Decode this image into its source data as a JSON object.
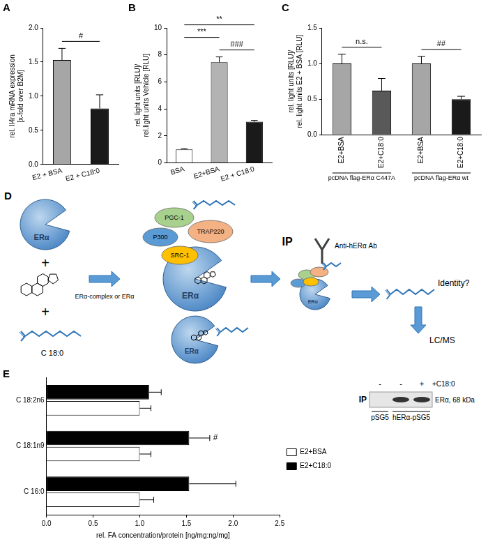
{
  "chart_data": [
    {
      "panel": "A",
      "type": "bar",
      "y_label": [
        "rel. Il4ra mRNA expression",
        "[x-fold over B2M]"
      ],
      "categories": [
        "E2 + BSA",
        "E2 + C18:0"
      ],
      "values": [
        1.53,
        0.82
      ],
      "errors": [
        0.17,
        0.2
      ],
      "colors": [
        "#a6a6a6",
        "#1a1a1a"
      ],
      "ylim": [
        0,
        2
      ],
      "yticks": [
        {
          "value": 0,
          "label": "0.0"
        },
        {
          "value": 0.5,
          "label": "0.5"
        },
        {
          "value": 1,
          "label": "1.0"
        },
        {
          "value": 1.5,
          "label": "1.5"
        },
        {
          "value": 2,
          "label": "2.0"
        }
      ],
      "grid": false,
      "annotations": [
        {
          "text": "#",
          "between": [
            0,
            1
          ]
        }
      ]
    },
    {
      "panel": "B",
      "type": "bar",
      "y_label": [
        "rel. light units [RLU]/",
        "rel.light units Vehicle [RLU]"
      ],
      "categories": [
        "BSA",
        "E2+BSA",
        "E2 + C18:0"
      ],
      "values": [
        1.0,
        7.45,
        3.05
      ],
      "errors": [
        0.05,
        0.4,
        0.1
      ],
      "colors": [
        "#ffffff",
        "#b3b3b3",
        "#1a1a1a"
      ],
      "ylim": [
        0,
        10
      ],
      "yticks": [
        0,
        2,
        4,
        6,
        8,
        10
      ],
      "grid": false,
      "annotations": [
        {
          "text": "###",
          "between": [
            1,
            2
          ]
        },
        {
          "text": "***",
          "between": [
            0,
            1
          ]
        },
        {
          "text": "**",
          "between": [
            0,
            2
          ]
        }
      ]
    },
    {
      "panel": "C",
      "type": "bar",
      "y_label": [
        "rel. light units [RLU]/",
        "rel. light units E2 + BSA [RLU]"
      ],
      "categories": [
        "E2+BSA",
        "E2+C18:0",
        "E2+BSA",
        "E2+C18:0"
      ],
      "values": [
        1.0,
        0.62,
        1.0,
        0.5
      ],
      "errors": [
        0.13,
        0.17,
        0.1,
        0.04
      ],
      "colors": [
        "#a6a6a6",
        "#595959",
        "#a6a6a6",
        "#1a1a1a"
      ],
      "ylim": [
        0,
        1.5
      ],
      "yticks": [
        {
          "value": 0,
          "label": "0.0"
        },
        {
          "value": 0.5,
          "label": "0.5"
        },
        {
          "value": 1,
          "label": "1.0"
        },
        {
          "value": 1.5,
          "label": "1.5"
        }
      ],
      "grid": false,
      "groups": [
        {
          "text": "pcDNA flag-ERα C447A",
          "between": [
            0,
            1
          ]
        },
        {
          "text": "pcDNA flag-ERα wt",
          "between": [
            2,
            3
          ]
        }
      ],
      "annotations": [
        {
          "text": "n.s.",
          "between": [
            0,
            1
          ]
        },
        {
          "text": "##",
          "between": [
            2,
            3
          ]
        }
      ]
    },
    {
      "panel": "E",
      "type": "bar",
      "orientation": "horizontal",
      "categories": [
        "C 18:2n6",
        "C 18:1n9",
        "C 16:0"
      ],
      "series": [
        {
          "name": "E2+BSA",
          "color": "#ffffff",
          "values": [
            1.0,
            1.0,
            1.0
          ],
          "errors": [
            0.12,
            0.12,
            0.15
          ]
        },
        {
          "name": "E2+C18:0",
          "color": "#000000",
          "values": [
            1.1,
            1.53,
            1.53
          ],
          "errors": [
            0.13,
            0.22,
            0.5
          ]
        }
      ],
      "x_label": "rel. FA concentration/protein [ng/mg:ng/mg]",
      "xlim": [
        0,
        2.5
      ],
      "xticks": [
        {
          "value": 0,
          "label": "0.0"
        },
        {
          "value": 0.5,
          "label": "0.5"
        },
        {
          "value": 1,
          "label": "1.0"
        },
        {
          "value": 1.5,
          "label": "1.5"
        },
        {
          "value": 2,
          "label": "2.0"
        },
        {
          "value": 2.5,
          "label": "2.5"
        }
      ],
      "grid": false,
      "legend": "right",
      "annotations": [
        {
          "text": "#",
          "category": 1,
          "series": "E2+C18:0"
        }
      ],
      "inset": {
        "label": "IP",
        "lanes": [
          "-",
          "-",
          "+"
        ],
        "treatment": "+C18:0",
        "band": "ERα, 68 kDa",
        "bands": [
          false,
          true,
          true
        ],
        "constructs": [
          {
            "text": "pSG5",
            "lanes": [
              0,
              0
            ]
          },
          {
            "text": "hERα-pSG5",
            "lanes": [
              1,
              2
            ]
          }
        ]
      }
    }
  ],
  "diagram": {
    "panel": "D",
    "operator": "+",
    "receptor": "ERα",
    "fatty_acid": "C 18:0",
    "arrow_label": "ERα-complex or ERα",
    "coactivators": [
      "PGC-1",
      "P300",
      "TRAP220",
      "SRC-1"
    ],
    "ip": "IP",
    "antibody": "Anti-hERα Ab",
    "question": "Identity?",
    "method": "LC/MS"
  }
}
